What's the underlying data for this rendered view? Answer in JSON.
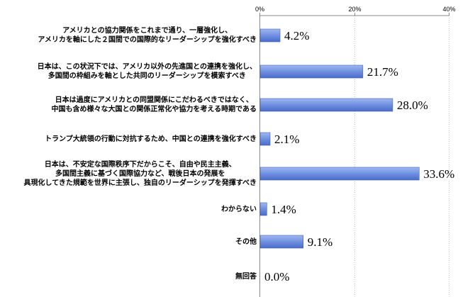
{
  "chart_data": {
    "type": "bar",
    "orientation": "horizontal",
    "categories": [
      "アメリカとの協力関係をこれまで通り、一層強化し、\nアメリカを軸にした２国間での国際的なリーダーシップを強化すべき",
      "日本は、この状況下では、アメリカ以外の先進国との連携を強化し、\n多国間の枠組みを軸とした共同のリーダーシップを模索すべき",
      "日本は過度にアメリカとの同盟関係にこだわるべきではなく、\n中国も含め様々な大国との関係正常化や協力を考える時期である",
      "トランプ大統領の行動に対抗するため、中国との連携を強化すべき",
      "日本は、不安定な国際秩序下だからこそ、自由や民主主義、\n多国間主義に基づく国際協力など、戦後日本の発展を\n具現化してきた規範を世界に主張し、独自のリーダーシップを発揮すべき",
      "わからない",
      "その他",
      "無回答"
    ],
    "values": [
      4.2,
      21.7,
      28.0,
      2.1,
      33.6,
      1.4,
      9.1,
      0.0
    ],
    "value_labels": [
      "4.2%",
      "21.7%",
      "28.0%",
      "2.1%",
      "33.6%",
      "1.4%",
      "9.1%",
      "0.0%"
    ],
    "xlim": [
      0,
      40
    ],
    "x_ticks": [
      0,
      20,
      40
    ],
    "x_tick_labels": [
      "0%",
      "20%",
      "40%"
    ],
    "grid": true,
    "bar_color": "#6f8fe0"
  }
}
